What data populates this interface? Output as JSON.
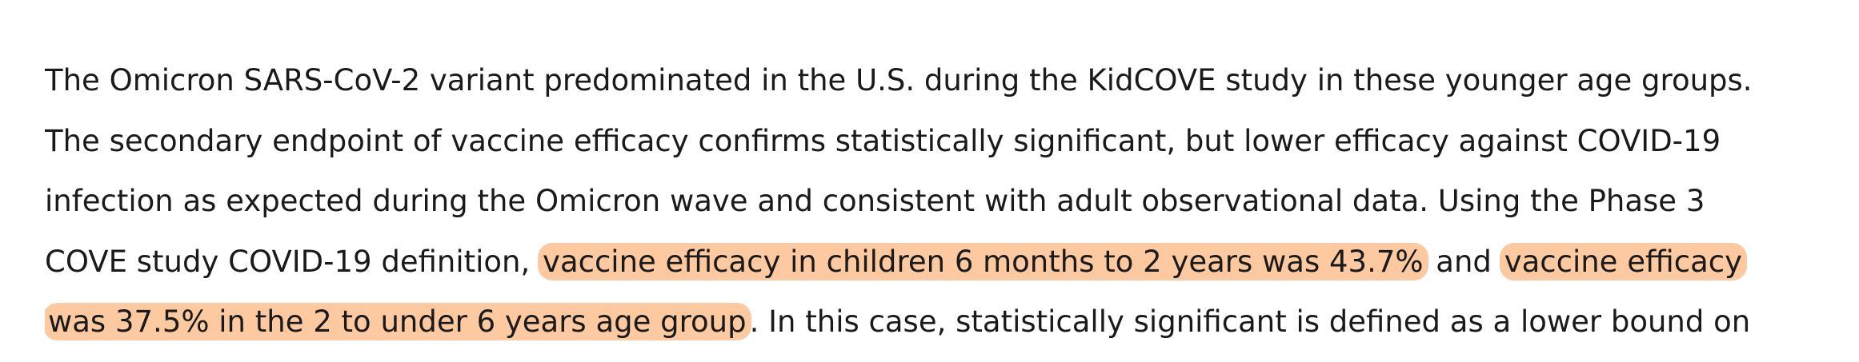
{
  "paragraph": {
    "lines": [
      {
        "segments": [
          {
            "text": "The Omicron SARS-CoV-2 variant predominated in the U.S. during the KidCOVE study in these younger age groups.",
            "highlight": false
          }
        ]
      },
      {
        "segments": [
          {
            "text": "The secondary endpoint of vaccine efficacy confirms statistically significant, but lower efficacy against COVID-19",
            "highlight": false
          }
        ]
      },
      {
        "segments": [
          {
            "text": "infection as expected during the Omicron wave and consistent with adult observational data. Using the Phase 3",
            "highlight": false
          }
        ]
      },
      {
        "segments": [
          {
            "text": "COVE study COVID-19 definition, ",
            "highlight": false
          },
          {
            "text": "vaccine efficacy in children 6 months to 2 years was 43.7%",
            "highlight": true
          },
          {
            "text": " and ",
            "highlight": false
          },
          {
            "text": "vaccine efficacy",
            "highlight": true
          }
        ]
      },
      {
        "segments": [
          {
            "text": "was 37.5% in the 2 to under 6 years age group",
            "highlight": true
          },
          {
            "text": ". In this case, statistically significant is defined as a lower bound on",
            "highlight": false
          }
        ]
      }
    ]
  }
}
